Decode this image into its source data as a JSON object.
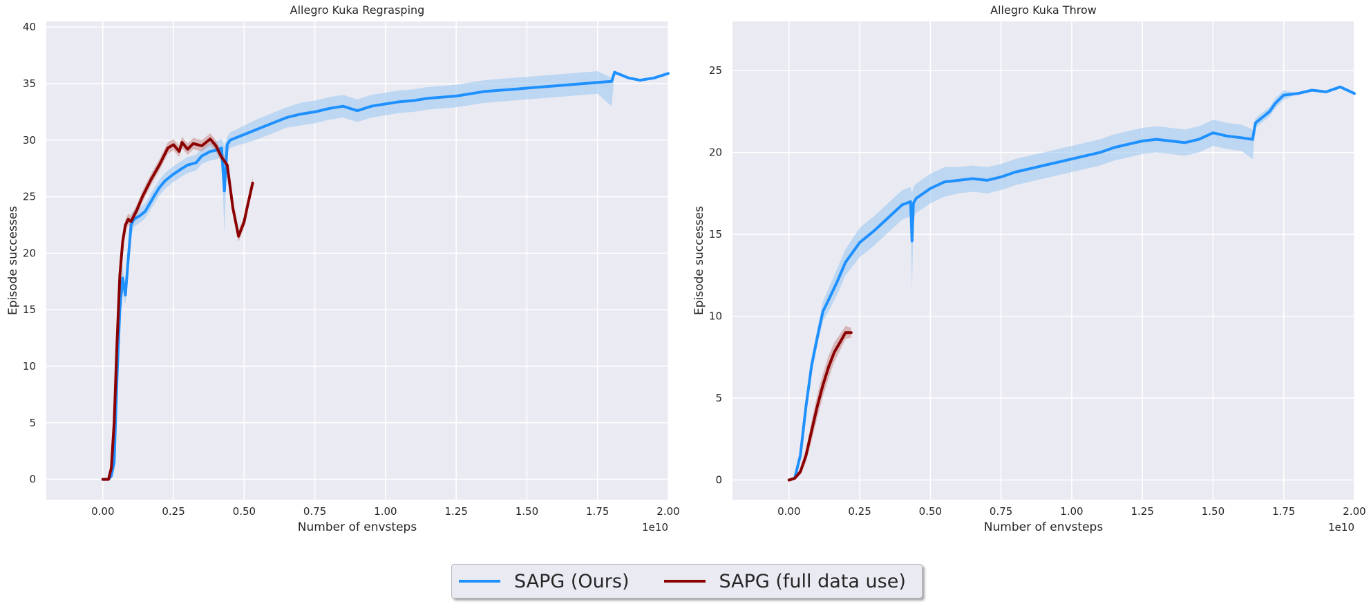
{
  "colors": {
    "series_blue": "#1e90ff",
    "series_blue_band": "#9ec9f2",
    "series_red": "#8b0000",
    "series_red_band": "#c98a8a",
    "panel_bg": "#eaeaf2",
    "grid": "#ffffff"
  },
  "legend": {
    "placement": "bottom-center",
    "items": [
      {
        "label": "SAPG (Ours)",
        "color": "#1e90ff"
      },
      {
        "label": "SAPG (full data use)",
        "color": "#8b0000"
      }
    ]
  },
  "chart_data": [
    {
      "type": "line",
      "title": "Allegro Kuka Regrasping",
      "xlabel": "Number of envsteps",
      "ylabel": "Episode successes",
      "x_offset_text": "1e10",
      "xlim": [
        -0.2,
        2.0
      ],
      "ylim": [
        -1.8,
        40.5
      ],
      "xticks": [
        0.0,
        0.25,
        0.5,
        0.75,
        1.0,
        1.25,
        1.5,
        1.75,
        2.0
      ],
      "xtick_labels": [
        "0.00",
        "0.25",
        "0.50",
        "0.75",
        "1.00",
        "1.25",
        "1.50",
        "1.75",
        "2.00"
      ],
      "yticks": [
        0,
        5,
        10,
        15,
        20,
        25,
        30,
        35,
        40
      ],
      "ytick_labels": [
        "0",
        "5",
        "10",
        "15",
        "20",
        "25",
        "30",
        "35",
        "40"
      ],
      "grid": true,
      "series": [
        {
          "name": "SAPG (Ours)",
          "x": [
            0.0,
            0.02,
            0.03,
            0.04,
            0.05,
            0.06,
            0.07,
            0.08,
            0.09,
            0.1,
            0.11,
            0.13,
            0.15,
            0.18,
            0.2,
            0.22,
            0.25,
            0.28,
            0.3,
            0.33,
            0.35,
            0.38,
            0.4,
            0.42,
            0.43,
            0.44,
            0.45,
            0.47,
            0.5,
            0.55,
            0.6,
            0.65,
            0.7,
            0.75,
            0.8,
            0.85,
            0.9,
            0.95,
            1.0,
            1.05,
            1.1,
            1.15,
            1.2,
            1.25,
            1.3,
            1.35,
            1.4,
            1.45,
            1.5,
            1.55,
            1.6,
            1.65,
            1.7,
            1.75,
            1.8,
            1.81,
            1.83,
            1.86,
            1.9,
            1.95,
            2.0
          ],
          "y": [
            0,
            0,
            0.3,
            1.5,
            9,
            15,
            17.8,
            16.3,
            19.5,
            22.5,
            23,
            23.3,
            23.7,
            25,
            25.8,
            26.4,
            27,
            27.5,
            27.8,
            28,
            28.6,
            29,
            29.1,
            29.3,
            25.5,
            29.6,
            30,
            30.2,
            30.5,
            31,
            31.5,
            32,
            32.3,
            32.5,
            32.8,
            33,
            32.6,
            33,
            33.2,
            33.4,
            33.5,
            33.7,
            33.8,
            33.9,
            34.1,
            34.3,
            34.4,
            34.5,
            34.6,
            34.7,
            34.8,
            34.9,
            35,
            35.1,
            35.2,
            36,
            35.8,
            35.5,
            35.3,
            35.5,
            35.9
          ],
          "lower": [
            0,
            0,
            0.1,
            1,
            7,
            13,
            16.5,
            15.5,
            18.5,
            21.5,
            22.3,
            22.7,
            23.1,
            24.3,
            25.1,
            25.7,
            26.3,
            26.8,
            27.1,
            27.3,
            27.9,
            28.2,
            28.3,
            28.5,
            21.8,
            28.9,
            29.3,
            29.5,
            29.7,
            30.1,
            30.6,
            31.1,
            31.3,
            31.5,
            31.8,
            32,
            31.6,
            32,
            32.2,
            32.4,
            32.5,
            32.7,
            32.8,
            32.9,
            33.1,
            33.3,
            33.4,
            33.5,
            33.6,
            33.7,
            33.8,
            33.9,
            34,
            34.1,
            33,
            36,
            35.8,
            35.5,
            35.3,
            35.5,
            35.9
          ],
          "upper": [
            0,
            0,
            0.6,
            2.2,
            11,
            17,
            19,
            17.2,
            20.5,
            23.5,
            23.8,
            24,
            24.4,
            25.7,
            26.5,
            27.1,
            27.7,
            28.2,
            28.5,
            28.7,
            29.3,
            29.8,
            29.9,
            30.1,
            29.5,
            30.3,
            30.7,
            30.9,
            31.3,
            31.9,
            32.4,
            32.9,
            33.3,
            33.5,
            33.8,
            34,
            33.6,
            34,
            34.2,
            34.4,
            34.5,
            34.7,
            34.8,
            34.9,
            35.1,
            35.3,
            35.4,
            35.5,
            35.6,
            35.7,
            35.8,
            35.9,
            36,
            36.1,
            35.5,
            36,
            35.8,
            35.5,
            35.3,
            35.5,
            35.9
          ]
        },
        {
          "name": "SAPG (full data use)",
          "x": [
            0.0,
            0.02,
            0.03,
            0.04,
            0.05,
            0.06,
            0.07,
            0.08,
            0.09,
            0.1,
            0.12,
            0.14,
            0.17,
            0.2,
            0.23,
            0.25,
            0.27,
            0.28,
            0.3,
            0.32,
            0.35,
            0.38,
            0.4,
            0.42,
            0.44,
            0.46,
            0.48,
            0.5,
            0.51,
            0.53
          ],
          "y": [
            0,
            0,
            1,
            5,
            12,
            18,
            21,
            22.5,
            23,
            22.8,
            23.8,
            25,
            26.5,
            27.8,
            29.3,
            29.6,
            29,
            29.8,
            29.2,
            29.7,
            29.5,
            30.1,
            29.5,
            28.5,
            27.8,
            24,
            21.5,
            22.8,
            24,
            26.2
          ],
          "lower": [
            0,
            0,
            0.8,
            4.5,
            11.5,
            17.5,
            20.5,
            22,
            22.5,
            22.3,
            23.3,
            24.5,
            26,
            27.3,
            28.8,
            29.1,
            28.5,
            29.3,
            28.7,
            29.2,
            29,
            29.6,
            29,
            28,
            27.3,
            23.5,
            21,
            22.3,
            23.5,
            25.7
          ],
          "upper": [
            0,
            0,
            1.2,
            5.5,
            12.5,
            18.5,
            21.5,
            23,
            23.5,
            23.3,
            24.3,
            25.5,
            27,
            28.3,
            29.8,
            30.1,
            29.5,
            30.3,
            29.7,
            30.2,
            30,
            30.6,
            30,
            29,
            28.3,
            24.5,
            22,
            23.3,
            24.5,
            26.7
          ]
        }
      ]
    },
    {
      "type": "line",
      "title": "Allegro Kuka Throw",
      "xlabel": "Number of envsteps",
      "ylabel": "Episode successes",
      "x_offset_text": "1e10",
      "xlim": [
        -0.2,
        2.0
      ],
      "ylim": [
        -1.2,
        28.0
      ],
      "xticks": [
        0.0,
        0.25,
        0.5,
        0.75,
        1.0,
        1.25,
        1.5,
        1.75,
        2.0
      ],
      "xtick_labels": [
        "0.00",
        "0.25",
        "0.50",
        "0.75",
        "1.00",
        "1.25",
        "1.50",
        "1.75",
        "2.00"
      ],
      "yticks": [
        0,
        5,
        10,
        15,
        20,
        25
      ],
      "ytick_labels": [
        "0",
        "5",
        "10",
        "15",
        "20",
        "25"
      ],
      "grid": true,
      "series": [
        {
          "name": "SAPG (Ours)",
          "x": [
            0.0,
            0.02,
            0.04,
            0.06,
            0.08,
            0.1,
            0.12,
            0.14,
            0.17,
            0.2,
            0.25,
            0.3,
            0.35,
            0.4,
            0.43,
            0.435,
            0.44,
            0.45,
            0.5,
            0.55,
            0.6,
            0.65,
            0.7,
            0.75,
            0.8,
            0.85,
            0.9,
            0.95,
            1.0,
            1.05,
            1.1,
            1.15,
            1.2,
            1.25,
            1.3,
            1.35,
            1.4,
            1.45,
            1.5,
            1.55,
            1.6,
            1.64,
            1.65,
            1.7,
            1.72,
            1.75,
            1.8,
            1.85,
            1.9,
            1.95,
            2.0
          ],
          "y": [
            0,
            0.1,
            1.5,
            4.5,
            7,
            8.7,
            10.3,
            11,
            12.1,
            13.3,
            14.5,
            15.2,
            16,
            16.8,
            17,
            14.6,
            16.9,
            17.2,
            17.8,
            18.2,
            18.3,
            18.4,
            18.3,
            18.5,
            18.8,
            19,
            19.2,
            19.4,
            19.6,
            19.8,
            20,
            20.3,
            20.5,
            20.7,
            20.8,
            20.7,
            20.6,
            20.8,
            21.2,
            21,
            20.9,
            20.8,
            21.8,
            22.5,
            23,
            23.5,
            23.6,
            23.8,
            23.7,
            24,
            23.6
          ],
          "lower": [
            0,
            0,
            1.2,
            4,
            6.5,
            8.2,
            9.7,
            10.3,
            11.3,
            12.5,
            13.6,
            14.3,
            15.1,
            15.9,
            16.1,
            11.5,
            15.9,
            16.3,
            16.9,
            17.3,
            17.5,
            17.6,
            17.5,
            17.7,
            18,
            18.2,
            18.4,
            18.6,
            18.8,
            19,
            19.2,
            19.5,
            19.7,
            19.9,
            20,
            19.9,
            19.8,
            20,
            20.4,
            20.2,
            20.1,
            19.6,
            21.5,
            22.2,
            22.7,
            23.2,
            23.6,
            23.8,
            23.7,
            24,
            23.6
          ],
          "upper": [
            0,
            0.2,
            1.8,
            5,
            7.5,
            9.2,
            10.9,
            11.7,
            12.9,
            14.1,
            15.4,
            16.1,
            16.9,
            17.7,
            17.9,
            17.5,
            17.9,
            18.1,
            18.7,
            19.1,
            19.1,
            19.2,
            19.1,
            19.3,
            19.6,
            19.8,
            20,
            20.2,
            20.4,
            20.6,
            20.8,
            21.1,
            21.3,
            21.5,
            21.6,
            21.5,
            21.4,
            21.6,
            22,
            21.8,
            21.7,
            21.4,
            22.1,
            22.8,
            23.3,
            23.8,
            23.6,
            23.8,
            23.7,
            24,
            23.6
          ]
        },
        {
          "name": "SAPG (full data use)",
          "x": [
            0.0,
            0.02,
            0.04,
            0.06,
            0.08,
            0.1,
            0.12,
            0.14,
            0.16,
            0.18,
            0.2,
            0.22
          ],
          "y": [
            0,
            0.1,
            0.5,
            1.5,
            3,
            4.5,
            5.8,
            6.9,
            7.8,
            8.4,
            9,
            9
          ],
          "lower": [
            0,
            0,
            0.3,
            1.1,
            2.4,
            3.8,
            5.1,
            6.2,
            7.2,
            7.9,
            8.6,
            8.7
          ],
          "upper": [
            0,
            0.2,
            0.7,
            1.9,
            3.6,
            5.2,
            6.5,
            7.6,
            8.4,
            8.9,
            9.4,
            9.3
          ]
        }
      ]
    }
  ]
}
